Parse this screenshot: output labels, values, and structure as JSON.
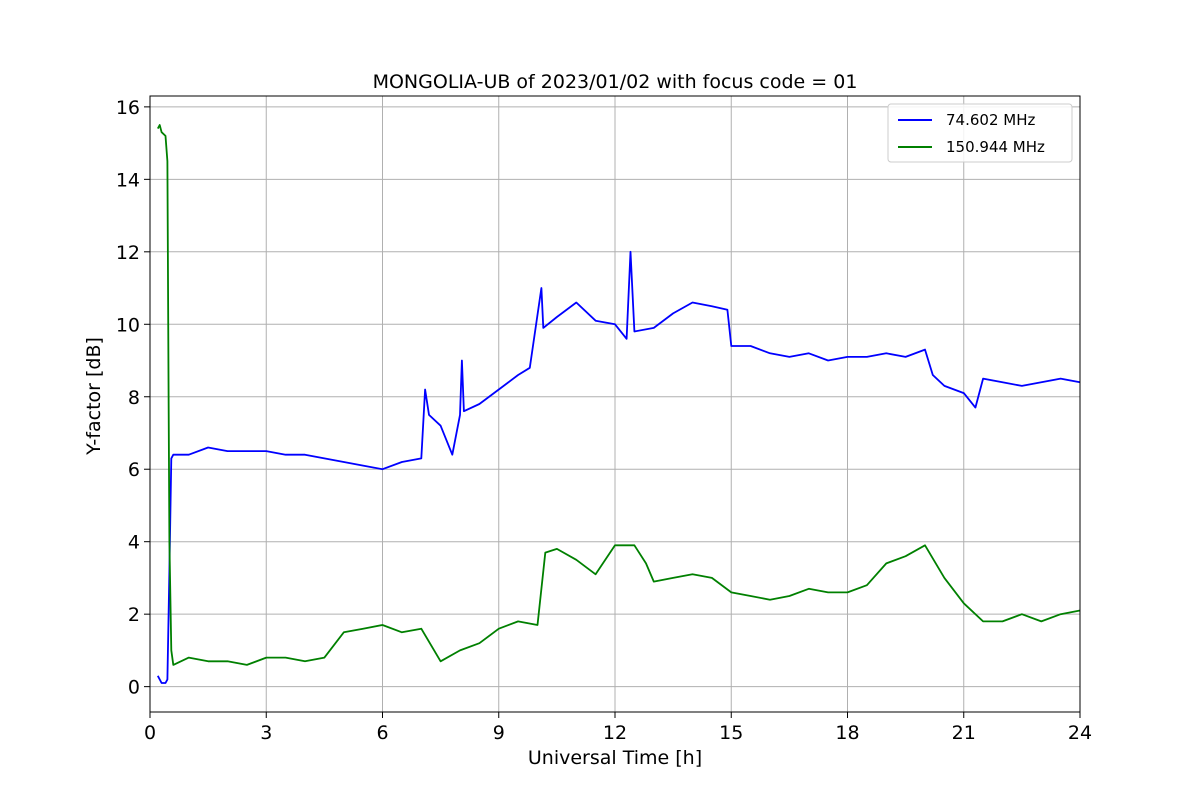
{
  "chart_data": {
    "type": "line",
    "title": "MONGOLIA-UB of 2023/01/02 with focus code = 01",
    "xlabel": "Universal Time [h]",
    "ylabel": "Y-factor [dB]",
    "xlim": [
      0,
      24
    ],
    "ylim": [
      -0.7,
      16.3
    ],
    "x_ticks": [
      "0",
      "3",
      "6",
      "9",
      "12",
      "15",
      "18",
      "21",
      "24"
    ],
    "y_ticks": [
      "0",
      "2",
      "4",
      "6",
      "8",
      "10",
      "12",
      "14",
      "16"
    ],
    "grid": true,
    "legend_position": "top-right",
    "series": [
      {
        "name": "74.602 MHz",
        "color": "#0000ff",
        "x": [
          0.2,
          0.3,
          0.4,
          0.45,
          0.5,
          0.55,
          0.6,
          1,
          1.5,
          2,
          2.5,
          3,
          3.5,
          4,
          4.5,
          5,
          5.5,
          6,
          6.5,
          7,
          7.1,
          7.2,
          7.5,
          7.8,
          8,
          8.05,
          8.1,
          8.5,
          9,
          9.5,
          9.8,
          10.1,
          10.15,
          10.5,
          11,
          11.5,
          12,
          12.3,
          12.4,
          12.5,
          13,
          13.5,
          14,
          14.5,
          14.9,
          15,
          15.5,
          16,
          16.5,
          17,
          17.5,
          18,
          18.5,
          19,
          19.5,
          20,
          20.2,
          20.5,
          21,
          21.3,
          21.5,
          22,
          22.5,
          23,
          23.5,
          24
        ],
        "y": [
          0.3,
          0.1,
          0.1,
          0.2,
          3.2,
          6.3,
          6.4,
          6.4,
          6.6,
          6.5,
          6.5,
          6.5,
          6.4,
          6.4,
          6.3,
          6.2,
          6.1,
          6.0,
          6.2,
          6.3,
          8.2,
          7.5,
          7.2,
          6.4,
          7.5,
          9.0,
          7.6,
          7.8,
          8.2,
          8.6,
          8.8,
          11.0,
          9.9,
          10.2,
          10.6,
          10.1,
          10.0,
          9.6,
          12.0,
          9.8,
          9.9,
          10.3,
          10.6,
          10.5,
          10.4,
          9.4,
          9.4,
          9.2,
          9.1,
          9.2,
          9.0,
          9.1,
          9.1,
          9.2,
          9.1,
          9.3,
          8.6,
          8.3,
          8.1,
          7.7,
          8.5,
          8.4,
          8.3,
          8.4,
          8.5,
          8.4
        ]
      },
      {
        "name": "150.944 MHz",
        "color": "#008000",
        "x": [
          0.2,
          0.25,
          0.3,
          0.4,
          0.45,
          0.48,
          0.5,
          0.55,
          0.6,
          1,
          1.5,
          2,
          2.5,
          3,
          3.5,
          4,
          4.5,
          5,
          5.5,
          6,
          6.5,
          7,
          7.5,
          8,
          8.5,
          9,
          9.5,
          10,
          10.2,
          10.5,
          11,
          11.5,
          12,
          12.5,
          12.8,
          13,
          13.5,
          14,
          14.5,
          15,
          15.5,
          16,
          16.5,
          17,
          17.5,
          18,
          18.5,
          19,
          19.5,
          20,
          20.5,
          21,
          21.5,
          22,
          22.5,
          23,
          23.5,
          24
        ],
        "y": [
          15.4,
          15.5,
          15.3,
          15.2,
          14.5,
          8.0,
          4.0,
          1.0,
          0.6,
          0.8,
          0.7,
          0.7,
          0.6,
          0.8,
          0.8,
          0.7,
          0.8,
          1.5,
          1.6,
          1.7,
          1.5,
          1.6,
          0.7,
          1.0,
          1.2,
          1.6,
          1.8,
          1.7,
          3.7,
          3.8,
          3.5,
          3.1,
          3.9,
          3.9,
          3.4,
          2.9,
          3.0,
          3.1,
          3.0,
          2.6,
          2.5,
          2.4,
          2.5,
          2.7,
          2.6,
          2.6,
          2.8,
          3.4,
          3.6,
          3.9,
          3.0,
          2.3,
          1.8,
          1.8,
          2.0,
          1.8,
          2.0,
          2.1
        ]
      }
    ]
  }
}
